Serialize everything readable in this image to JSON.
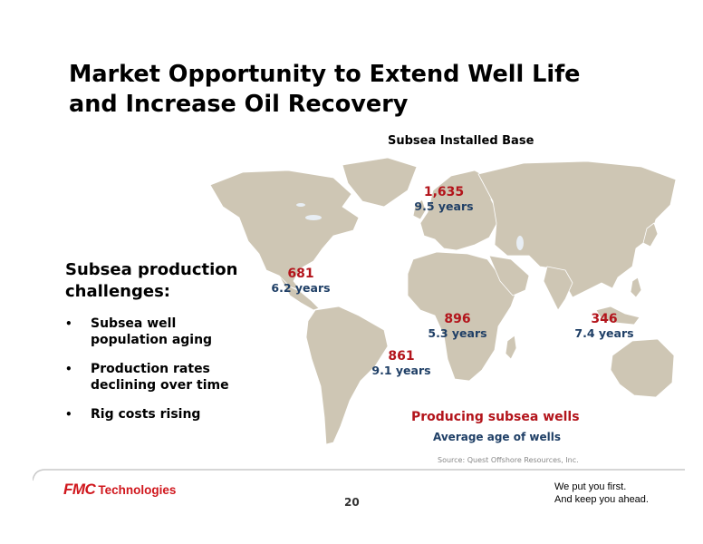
{
  "slide": {
    "title_line1": "Market Opportunity to Extend Well Life",
    "title_line2": "and Increase Oil Recovery",
    "map_title": "Subsea Installed Base",
    "regions": [
      {
        "name": "north-sea",
        "count": "1,635",
        "age": "9.5 years"
      },
      {
        "name": "gulf-of-mexico",
        "count": "681",
        "age": "6.2 years"
      },
      {
        "name": "west-africa",
        "count": "896",
        "age": "5.3 years"
      },
      {
        "name": "brazil",
        "count": "861",
        "age": "9.1 years"
      },
      {
        "name": "asia-pacific",
        "count": "346",
        "age": "7.4 years"
      }
    ],
    "challenges_title_line1": "Subsea production",
    "challenges_title_line2": "challenges:",
    "bullets": [
      {
        "line1": "Subsea well",
        "line2": "population aging"
      },
      {
        "line1": "Production rates",
        "line2": "declining over time"
      },
      {
        "line1": "Rig costs rising",
        "line2": ""
      }
    ],
    "bullet_char": "•",
    "legend_count": "Producing subsea wells",
    "legend_age": "Average age of wells",
    "source": "Source: Quest Offshore Resources, Inc.",
    "page_number": "20"
  },
  "footer": {
    "logo_mark": "FMC",
    "logo_text": "Technologies",
    "slogan_line1": "We put you first.",
    "slogan_line2": "And keep you ahead."
  },
  "colors": {
    "count": "#b3141b",
    "age": "#1f3f66",
    "land": "#cec6b4",
    "brand": "#d0171d"
  }
}
